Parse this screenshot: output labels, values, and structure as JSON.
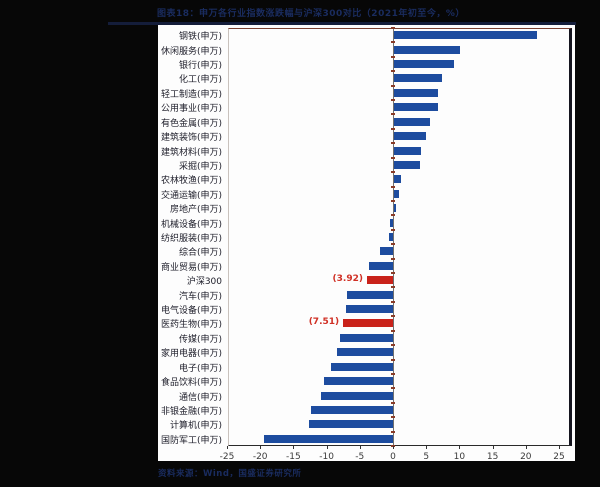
{
  "header": {
    "title": "图表18：申万各行业指数涨跌幅与沪深300对比（2021年初至今，%）"
  },
  "footer": {
    "source": "资料来源：Wind，国盛证券研究所"
  },
  "chart_data": {
    "type": "bar",
    "orientation": "horizontal",
    "title": "申万各行业指数涨跌幅与沪深300对比（2021年初至今，%）",
    "xlabel": "",
    "ylabel": "",
    "xlim": [
      -25,
      25
    ],
    "x_ticks": [
      -25,
      -20,
      -15,
      -10,
      -5,
      0,
      5,
      10,
      15,
      20,
      25
    ],
    "grid": false,
    "legend": false,
    "categories": [
      "钢铁(申万)",
      "休闲服务(申万)",
      "银行(申万)",
      "化工(申万)",
      "轻工制造(申万)",
      "公用事业(申万)",
      "有色金属(申万)",
      "建筑装饰(申万)",
      "建筑材料(申万)",
      "采掘(申万)",
      "农林牧渔(申万)",
      "交通运输(申万)",
      "房地产(申万)",
      "机械设备(申万)",
      "纺织服装(申万)",
      "综合(申万)",
      "商业贸易(申万)",
      "沪深300",
      "汽车(申万)",
      "电气设备(申万)",
      "医药生物(申万)",
      "传媒(申万)",
      "家用电器(申万)",
      "电子(申万)",
      "食品饮料(申万)",
      "通信(申万)",
      "非银金融(申万)",
      "计算机(申万)",
      "国防军工(申万)"
    ],
    "values": [
      21.5,
      9.9,
      9.1,
      7.3,
      6.6,
      6.6,
      5.4,
      4.8,
      4.0,
      3.9,
      1.1,
      0.7,
      0.2,
      -0.4,
      -0.6,
      -1.9,
      -3.6,
      -3.92,
      -7.0,
      -7.1,
      -7.51,
      -8.0,
      -8.5,
      -9.4,
      -10.4,
      -10.8,
      -12.4,
      -12.6,
      -19.5
    ],
    "highlighted_indices": [
      17,
      20
    ],
    "value_labels": [
      {
        "index": 17,
        "text": "(3.92)"
      },
      {
        "index": 20,
        "text": "(7.51)"
      }
    ],
    "colors": {
      "bar": "#1d4c9f",
      "highlight": "#c9221a",
      "value_label": "#d03025",
      "axis_node": "#8a3c28"
    }
  }
}
